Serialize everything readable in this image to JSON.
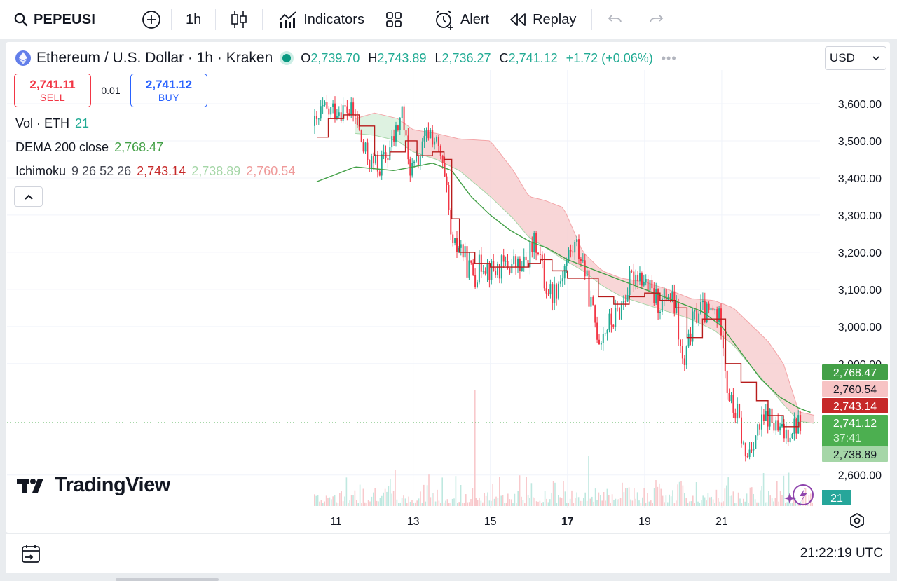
{
  "toolbar": {
    "symbol": "PEPEUSI",
    "interval": "1h",
    "indicators_label": "Indicators",
    "alert_label": "Alert",
    "replay_label": "Replay"
  },
  "legend": {
    "title": "Ethereum / U.S. Dollar · 1h · Kraken",
    "o_key": "O",
    "o": "2,739.70",
    "h_key": "H",
    "h": "2,743.89",
    "l_key": "L",
    "l": "2,736.27",
    "c_key": "C",
    "c": "2,741.12",
    "change": "+1.72 (+0.06%)",
    "more": "•••"
  },
  "trade": {
    "sell_price": "2,741.11",
    "sell_label": "SELL",
    "spread": "0.01",
    "buy_price": "2,741.12",
    "buy_label": "BUY"
  },
  "indicators": {
    "vol": {
      "name": "Vol · ETH",
      "value": "21"
    },
    "dema": {
      "name": "DEMA 200 close",
      "value": "2,768.47"
    },
    "ichimoku": {
      "name": "Ichimoku",
      "params": "9 26 52 26",
      "v1": "2,743.14",
      "v2": "2,738.89",
      "v3": "2,760.54"
    }
  },
  "currency": "USD",
  "brand": "TradingView",
  "clock": "21:22:19 UTC",
  "colors": {
    "up": "#22ab94",
    "down": "#f23645",
    "dema": "#43a047",
    "tenkan": "#b71c1c",
    "cloud_red": "#f7cfd0",
    "cloud_green": "#d8f0dc"
  },
  "chart_data": {
    "type": "candlestick",
    "x_ticks": [
      "11",
      "13",
      "15",
      "17",
      "19",
      "21"
    ],
    "x_bold": "17",
    "y_ticks": [
      "3,600.00",
      "3,500.00",
      "3,400.00",
      "3,300.00",
      "3,200.00",
      "3,100.00",
      "3,000.00",
      "2,900.00",
      "2,600.00"
    ],
    "y_tick_values": [
      3600,
      3500,
      3400,
      3300,
      3200,
      3100,
      3000,
      2900,
      2600
    ],
    "ylim": [
      2530,
      3720
    ],
    "x_range_days": [
      10.2,
      23.4
    ],
    "close_path": [
      [
        10.5,
        3540
      ],
      [
        10.6,
        3580
      ],
      [
        10.8,
        3575
      ],
      [
        11.0,
        3590
      ],
      [
        11.3,
        3580
      ],
      [
        11.5,
        3560
      ],
      [
        11.7,
        3470
      ],
      [
        11.9,
        3440
      ],
      [
        12.1,
        3430
      ],
      [
        12.3,
        3460
      ],
      [
        12.5,
        3510
      ],
      [
        12.7,
        3580
      ],
      [
        12.85,
        3440
      ],
      [
        13.0,
        3420
      ],
      [
        13.2,
        3470
      ],
      [
        13.4,
        3530
      ],
      [
        13.55,
        3500
      ],
      [
        13.7,
        3450
      ],
      [
        13.85,
        3350
      ],
      [
        14.0,
        3200
      ],
      [
        14.2,
        3220
      ],
      [
        14.4,
        3160
      ],
      [
        14.6,
        3140
      ],
      [
        14.8,
        3180
      ],
      [
        15.0,
        3150
      ],
      [
        15.3,
        3160
      ],
      [
        15.6,
        3170
      ],
      [
        15.8,
        3150
      ],
      [
        16.0,
        3200
      ],
      [
        16.2,
        3230
      ],
      [
        16.4,
        3110
      ],
      [
        16.6,
        3090
      ],
      [
        16.8,
        3130
      ],
      [
        17.0,
        3190
      ],
      [
        17.2,
        3220
      ],
      [
        17.4,
        3170
      ],
      [
        17.6,
        3050
      ],
      [
        17.8,
        2970
      ],
      [
        18.0,
        3000
      ],
      [
        18.2,
        3020
      ],
      [
        18.4,
        3060
      ],
      [
        18.6,
        3120
      ],
      [
        18.8,
        3150
      ],
      [
        19.0,
        3120
      ],
      [
        19.2,
        3080
      ],
      [
        19.4,
        3060
      ],
      [
        19.6,
        3090
      ],
      [
        19.8,
        3040
      ],
      [
        19.9,
        2940
      ],
      [
        20.0,
        2880
      ],
      [
        20.2,
        3000
      ],
      [
        20.4,
        3050
      ],
      [
        20.6,
        3030
      ],
      [
        20.8,
        3040
      ],
      [
        21.0,
        3000
      ],
      [
        21.1,
        2850
      ],
      [
        21.25,
        2780
      ],
      [
        21.4,
        2760
      ],
      [
        21.6,
        2640
      ],
      [
        21.8,
        2700
      ],
      [
        22.0,
        2730
      ],
      [
        22.2,
        2760
      ],
      [
        22.4,
        2720
      ],
      [
        22.6,
        2710
      ],
      [
        22.8,
        2730
      ],
      [
        23.0,
        2741.12
      ]
    ],
    "tenkan_path": [
      [
        10.5,
        3510
      ],
      [
        10.8,
        3560
      ],
      [
        11.2,
        3570
      ],
      [
        11.6,
        3540
      ],
      [
        12.0,
        3460
      ],
      [
        12.4,
        3470
      ],
      [
        12.8,
        3500
      ],
      [
        13.1,
        3460
      ],
      [
        13.5,
        3470
      ],
      [
        13.8,
        3450
      ],
      [
        14.0,
        3290
      ],
      [
        14.2,
        3200
      ],
      [
        14.6,
        3170
      ],
      [
        15.0,
        3160
      ],
      [
        15.5,
        3160
      ],
      [
        16.0,
        3170
      ],
      [
        16.3,
        3180
      ],
      [
        16.6,
        3150
      ],
      [
        17.0,
        3130
      ],
      [
        17.4,
        3130
      ],
      [
        17.8,
        3080
      ],
      [
        18.2,
        3060
      ],
      [
        18.6,
        3080
      ],
      [
        19.0,
        3090
      ],
      [
        19.4,
        3070
      ],
      [
        19.8,
        3050
      ],
      [
        20.1,
        2970
      ],
      [
        20.5,
        3020
      ],
      [
        20.9,
        3020
      ],
      [
        21.1,
        2900
      ],
      [
        21.5,
        2850
      ],
      [
        21.9,
        2800
      ],
      [
        22.2,
        2760
      ],
      [
        22.6,
        2730
      ],
      [
        23.0,
        2743.14
      ]
    ],
    "dema_path": [
      [
        10.5,
        3390
      ],
      [
        11.0,
        3410
      ],
      [
        11.5,
        3430
      ],
      [
        12.0,
        3425
      ],
      [
        12.5,
        3420
      ],
      [
        13.0,
        3430
      ],
      [
        13.5,
        3440
      ],
      [
        14.0,
        3420
      ],
      [
        14.5,
        3350
      ],
      [
        15.0,
        3300
      ],
      [
        15.5,
        3260
      ],
      [
        16.0,
        3230
      ],
      [
        16.5,
        3210
      ],
      [
        17.0,
        3180
      ],
      [
        17.5,
        3160
      ],
      [
        18.0,
        3140
      ],
      [
        18.5,
        3120
      ],
      [
        19.0,
        3100
      ],
      [
        19.5,
        3080
      ],
      [
        20.0,
        3060
      ],
      [
        20.5,
        3040
      ],
      [
        21.0,
        3000
      ],
      [
        21.5,
        2930
      ],
      [
        22.0,
        2860
      ],
      [
        22.5,
        2810
      ],
      [
        23.0,
        2780
      ],
      [
        23.3,
        2768.47
      ]
    ],
    "cloud_top": [
      [
        11.5,
        3560
      ],
      [
        12.0,
        3575
      ],
      [
        12.6,
        3560
      ],
      [
        13.0,
        3530
      ],
      [
        13.6,
        3520
      ],
      [
        14.2,
        3505
      ],
      [
        15.0,
        3500
      ],
      [
        15.6,
        3420
      ],
      [
        16.0,
        3350
      ],
      [
        16.4,
        3340
      ],
      [
        16.9,
        3320
      ],
      [
        17.4,
        3200
      ],
      [
        17.9,
        3150
      ],
      [
        18.4,
        3130
      ],
      [
        19.0,
        3120
      ],
      [
        19.6,
        3100
      ],
      [
        20.2,
        3075
      ],
      [
        20.8,
        3070
      ],
      [
        21.3,
        3050
      ],
      [
        21.7,
        3010
      ],
      [
        22.2,
        2960
      ],
      [
        22.6,
        2900
      ],
      [
        23.0,
        2770
      ],
      [
        23.4,
        2760.54
      ]
    ],
    "cloud_bottom": [
      [
        11.5,
        3520
      ],
      [
        12.0,
        3515
      ],
      [
        12.6,
        3500
      ],
      [
        13.0,
        3470
      ],
      [
        13.6,
        3450
      ],
      [
        14.2,
        3420
      ],
      [
        15.0,
        3350
      ],
      [
        15.6,
        3290
      ],
      [
        16.0,
        3240
      ],
      [
        16.4,
        3215
      ],
      [
        16.9,
        3180
      ],
      [
        17.4,
        3150
      ],
      [
        17.9,
        3110
      ],
      [
        18.4,
        3080
      ],
      [
        19.0,
        3060
      ],
      [
        19.6,
        3040
      ],
      [
        20.2,
        3020
      ],
      [
        20.8,
        2990
      ],
      [
        21.3,
        2950
      ],
      [
        21.7,
        2900
      ],
      [
        22.2,
        2840
      ],
      [
        22.6,
        2790
      ],
      [
        23.0,
        2745
      ],
      [
        23.4,
        2738.89
      ]
    ],
    "price_labels": [
      {
        "value": 2768.47,
        "text": "2,768.47",
        "bg": "#43a047",
        "fg": "#ffffff"
      },
      {
        "value": 2760.54,
        "text": "2,760.54",
        "bg": "#f7c3c4",
        "fg": "#131722"
      },
      {
        "value": 2743.14,
        "text": "2,743.14",
        "bg": "#c62828",
        "fg": "#ffffff"
      },
      {
        "value": 2741.12,
        "text": "2,741.12",
        "sub": "37:41",
        "bg": "#4caf50",
        "fg": "#ffffff"
      },
      {
        "value": 2738.89,
        "text": "2,738.89",
        "bg": "#a5d6a7",
        "fg": "#131722"
      }
    ],
    "volume_label": "21"
  }
}
